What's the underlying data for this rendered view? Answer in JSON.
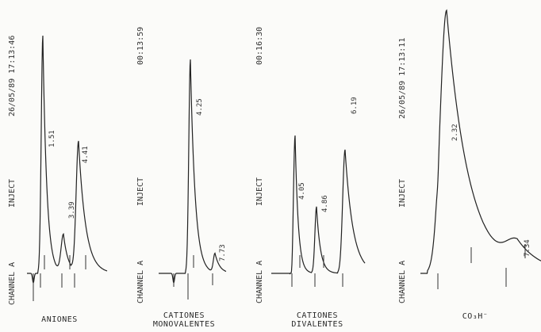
{
  "chart_data": [
    {
      "type": "line",
      "title": "ANIONES",
      "header": {
        "channel": "CHANNEL A",
        "inject": "INJECT",
        "timestamp": "26/05/89 17:13:46"
      },
      "peak_labels": [
        "1.51",
        "3.39",
        "4.41"
      ],
      "peaks": [
        {
          "label": "1.51",
          "height": 1.0
        },
        {
          "label": "3.39",
          "height": 0.16
        },
        {
          "label": "4.41",
          "height": 0.55
        }
      ]
    },
    {
      "type": "line",
      "title": "CATIONES MONOVALENTES",
      "title_lines": [
        "CATIONES",
        "MONOVALENTES"
      ],
      "header": {
        "channel": "CHANNEL A",
        "inject": "INJECT",
        "timestamp": "00:13:59"
      },
      "peak_labels": [
        "4.25",
        "7.73"
      ],
      "peaks": [
        {
          "label": "4.25",
          "height": 0.9
        },
        {
          "label": "7.73",
          "height": 0.08
        }
      ]
    },
    {
      "type": "line",
      "title": "CATIONES DIVALENTES",
      "title_lines": [
        "CATIONES",
        "DIVALENTES"
      ],
      "header": {
        "channel": "CHANNEL A",
        "inject": "INJECT",
        "timestamp": "00:16:30"
      },
      "peak_labels": [
        "4.05",
        "4.86",
        "6.19"
      ],
      "peaks": [
        {
          "label": "4.05",
          "height": 0.58
        },
        {
          "label": "4.86",
          "height": 0.28
        },
        {
          "label": "6.19",
          "height": 0.52
        }
      ]
    },
    {
      "type": "line",
      "title": "CO₃H⁻",
      "header": {
        "channel": "CHANNEL A",
        "inject": "INJECT",
        "timestamp": "26/05/89 17:13:11"
      },
      "peak_labels": [
        "2.32",
        "7.34"
      ],
      "peaks": [
        {
          "label": "2.32",
          "height": 1.0
        },
        {
          "label": "7.34",
          "height": 0.09
        }
      ]
    }
  ]
}
